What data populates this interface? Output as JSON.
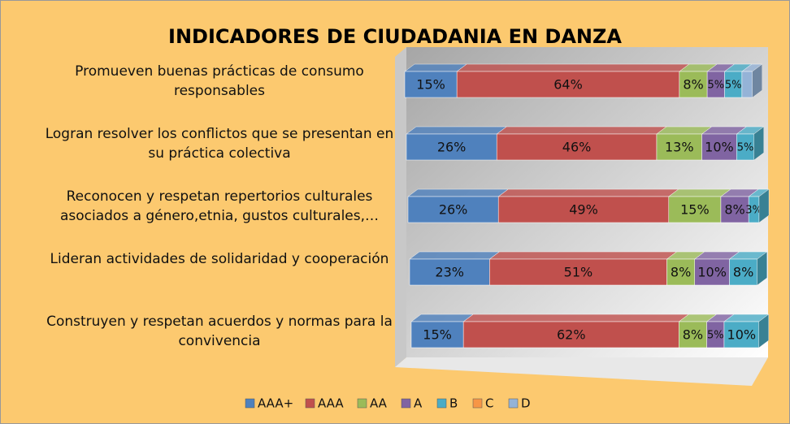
{
  "chart_data": {
    "type": "bar3d_stacked_horizontal",
    "title": "INDICADORES DE CIUDADANIA EN DANZA",
    "categories": [
      "Promueven buenas prácticas de consumo responsables",
      "Logran resolver los conflictos que se presentan en su práctica colectiva",
      "Reconocen y respetan repertorios culturales asociados a género,etnia, gustos culturales,…",
      "Lideran actividades de solidaridad y cooperación",
      "Construyen y respetan acuerdos y normas para la convivencia"
    ],
    "series": [
      {
        "name": "AAA+",
        "color": "#4f81bd",
        "values": [
          15,
          26,
          26,
          23,
          15
        ],
        "value_labels": [
          "15%",
          "26%",
          "26%",
          "23%",
          "15%"
        ]
      },
      {
        "name": "AAA",
        "color": "#c0504d",
        "values": [
          64,
          46,
          49,
          51,
          62
        ],
        "value_labels": [
          "64%",
          "46%",
          "49%",
          "51%",
          "62%"
        ]
      },
      {
        "name": "AA",
        "color": "#9bbb59",
        "values": [
          8,
          13,
          15,
          8,
          8
        ],
        "value_labels": [
          "8%",
          "13%",
          "15%",
          "8%",
          "8%"
        ]
      },
      {
        "name": "A",
        "color": "#8064a2",
        "values": [
          5,
          10,
          8,
          10,
          5
        ],
        "value_labels": [
          "5%",
          "10%",
          "8%",
          "10%",
          "5%"
        ]
      },
      {
        "name": "B",
        "color": "#4bacc6",
        "values": [
          5,
          5,
          3,
          8,
          10
        ],
        "value_labels": [
          "5%",
          "5%",
          "3%",
          "8%",
          "10%"
        ]
      },
      {
        "name": "C",
        "color": "#f79646",
        "values": [
          0,
          0,
          0,
          0,
          0
        ],
        "value_labels": [
          null,
          null,
          null,
          null,
          null
        ]
      },
      {
        "name": "D",
        "color": "#95b3d7",
        "values": [
          3,
          0,
          0,
          0,
          0
        ],
        "value_labels": [
          null,
          null,
          null,
          null,
          null
        ]
      }
    ],
    "xlim": [
      0,
      101
    ]
  }
}
